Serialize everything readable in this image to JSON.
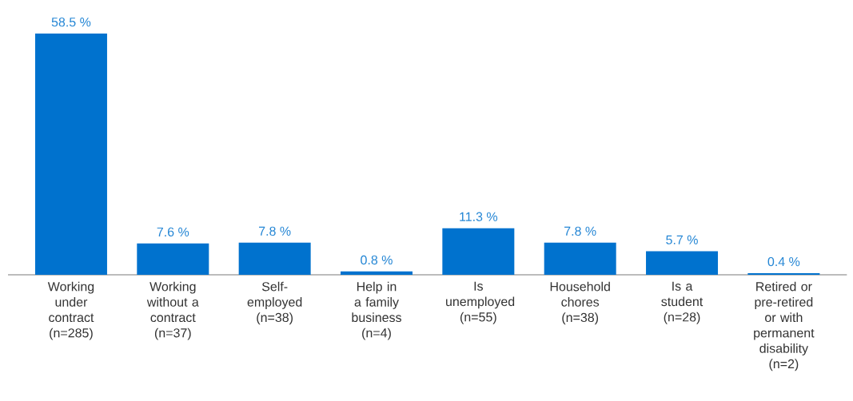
{
  "chart_data": {
    "type": "bar",
    "categories": [
      "Working under contract (n=285)",
      "Working without a contract (n=37)",
      "Self-employed (n=38)",
      "Help in a family business (n=4)",
      "Is unemployed (n=55)",
      "Household chores (n=38)",
      "Is a student (n=28)",
      "Retired or pre-retired or with permanent disability (n=2)"
    ],
    "values": [
      58.5,
      7.6,
      7.8,
      0.8,
      11.3,
      7.8,
      5.7,
      0.4
    ],
    "value_labels": [
      "58.5 %",
      "7.6 %",
      "7.8 %",
      "0.8 %",
      "11.3 %",
      "7.8 %",
      "5.7 %",
      "0.4 %"
    ],
    "color": "#0072ce"
  }
}
